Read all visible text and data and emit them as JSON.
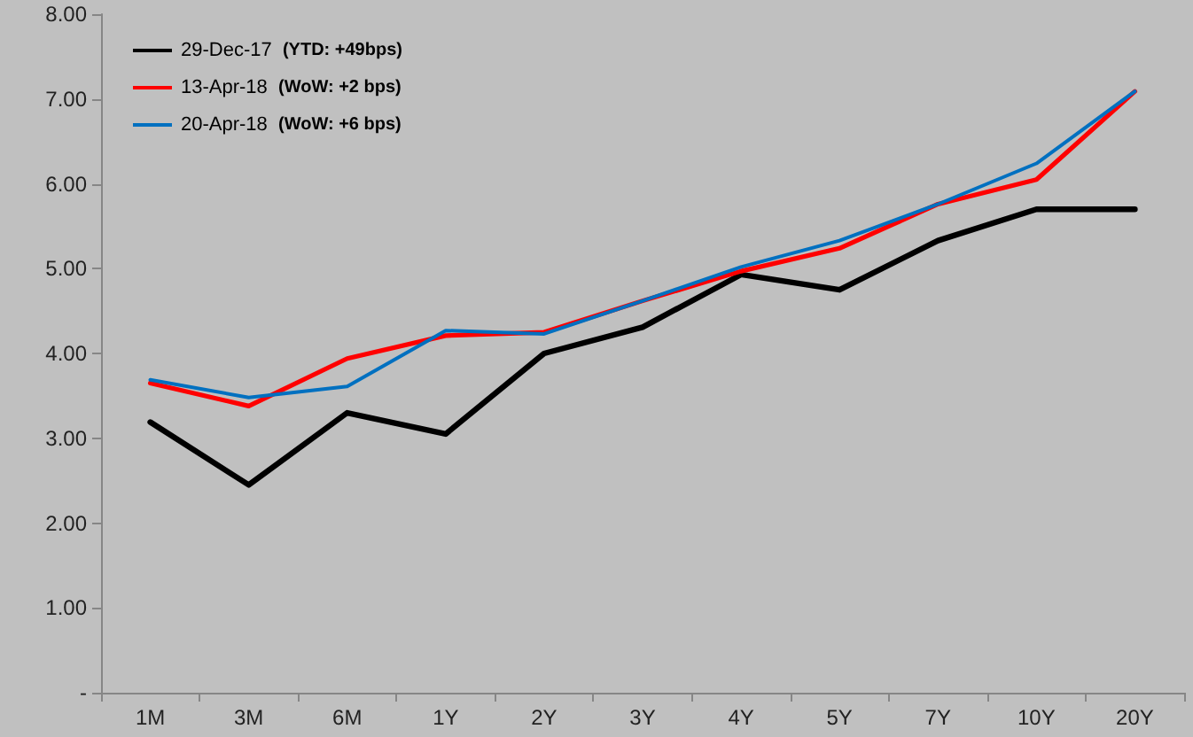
{
  "chart_data": {
    "type": "line",
    "categories": [
      "1M",
      "3M",
      "6M",
      "1Y",
      "2Y",
      "3Y",
      "4Y",
      "5Y",
      "7Y",
      "10Y",
      "20Y"
    ],
    "series": [
      {
        "name": "29-Dec-17  (YTD: +49bps)",
        "color": "#000000",
        "values": [
          3.19,
          2.45,
          3.3,
          3.05,
          4.0,
          4.31,
          4.93,
          4.75,
          5.33,
          5.7,
          5.7
        ]
      },
      {
        "name": "13-Apr-18  (WoW: +2 bps)",
        "color": "#ff0000",
        "values": [
          3.65,
          3.38,
          3.94,
          4.21,
          4.25,
          4.62,
          4.97,
          5.24,
          5.76,
          6.05,
          7.09
        ]
      },
      {
        "name": "20-Apr-18  (WoW: +6 bps)",
        "color": "#0070c0",
        "values": [
          3.69,
          3.48,
          3.61,
          4.27,
          4.23,
          4.62,
          5.02,
          5.33,
          5.76,
          6.24,
          7.09
        ]
      }
    ],
    "ylim": [
      0,
      8
    ],
    "yticks": [
      {
        "value": 0,
        "label": "-"
      },
      {
        "value": 1,
        "label": "1.00"
      },
      {
        "value": 2,
        "label": "2.00"
      },
      {
        "value": 3,
        "label": "3.00"
      },
      {
        "value": 4,
        "label": "4.00"
      },
      {
        "value": 5,
        "label": "5.00"
      },
      {
        "value": 6,
        "label": "6.00"
      },
      {
        "value": 7,
        "label": "7.00"
      },
      {
        "value": 8,
        "label": "8.00"
      }
    ],
    "grid": false,
    "legend": "top left",
    "marker": "none",
    "line_style": "solid"
  }
}
